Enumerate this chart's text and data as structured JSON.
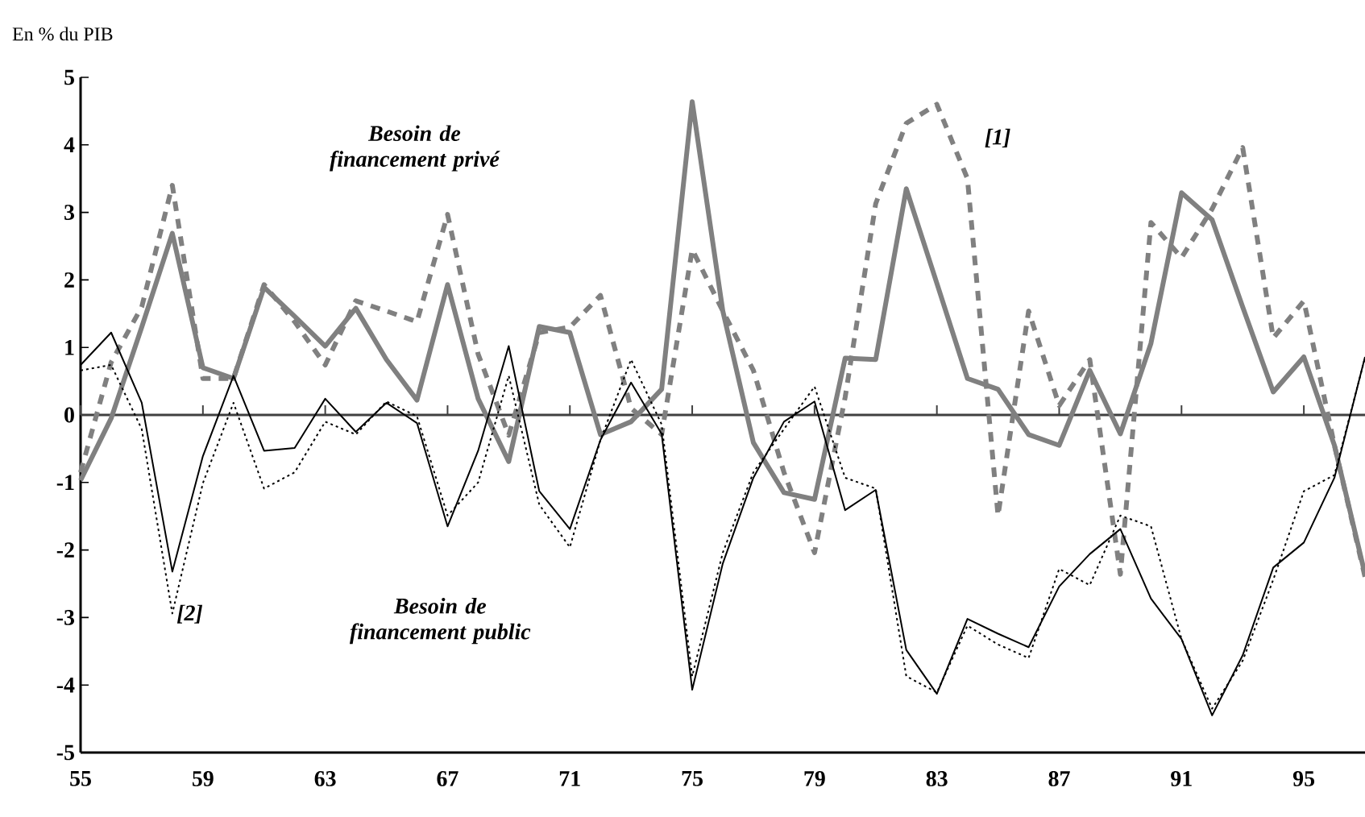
{
  "chart_data": {
    "type": "line",
    "ylabel": "En % du PIB",
    "x": [
      55,
      56,
      57,
      58,
      59,
      60,
      61,
      62,
      63,
      64,
      65,
      66,
      67,
      68,
      69,
      70,
      71,
      72,
      73,
      74,
      75,
      76,
      77,
      78,
      79,
      80,
      81,
      82,
      83,
      84,
      85,
      86,
      87,
      88,
      89,
      90,
      91,
      92,
      93,
      94,
      95,
      96,
      97
    ],
    "xlim": [
      55,
      97
    ],
    "xticks": [
      55,
      59,
      63,
      67,
      71,
      75,
      79,
      83,
      87,
      91,
      95
    ],
    "ylim": [
      -5,
      5
    ],
    "yticks": [
      -5,
      -4,
      -3,
      -2,
      -1,
      0,
      1,
      2,
      3,
      4,
      5
    ],
    "grid": false,
    "marker": "none",
    "series": [
      {
        "color": "#808080",
        "line_style": "solid",
        "values": [
          -0.97,
          -0.05,
          1.3,
          2.69,
          0.7,
          0.54,
          1.89,
          1.46,
          1.02,
          1.58,
          0.82,
          0.22,
          1.93,
          0.24,
          -0.69,
          1.31,
          1.22,
          -0.29,
          -0.1,
          0.38,
          4.64,
          1.54,
          -0.41,
          -1.15,
          -1.25,
          0.84,
          0.82,
          3.35,
          1.95,
          0.54,
          0.38,
          -0.29,
          -0.45,
          0.66,
          -0.28,
          1.06,
          3.29,
          2.89,
          1.6,
          0.34,
          0.86,
          -0.45,
          -2.36
        ]
      },
      {
        "color": "#808080",
        "line_style": "dashed",
        "values": [
          -0.85,
          0.78,
          1.6,
          3.4,
          0.54,
          0.54,
          1.93,
          1.38,
          0.74,
          1.69,
          1.54,
          1.38,
          2.97,
          0.9,
          -0.3,
          1.22,
          1.3,
          1.77,
          0.1,
          -0.29,
          2.45,
          1.54,
          0.66,
          -0.85,
          -2.04,
          0.26,
          3.13,
          4.32,
          4.6,
          3.5,
          -1.49,
          1.54,
          0.14,
          0.82,
          -2.36,
          2.85,
          2.33,
          3.05,
          3.96,
          1.14,
          1.69,
          -0.45,
          -2.4
        ]
      },
      {
        "color": "#000000",
        "line_style": "solid",
        "values": [
          0.74,
          1.22,
          0.18,
          -2.32,
          -0.61,
          0.58,
          -0.53,
          -0.49,
          0.24,
          -0.25,
          0.18,
          -0.12,
          -1.65,
          -0.53,
          1.02,
          -1.13,
          -1.69,
          -0.37,
          0.48,
          -0.28,
          -4.07,
          -2.2,
          -0.93,
          -0.1,
          0.2,
          -1.41,
          -1.11,
          -3.48,
          -4.13,
          -3.02,
          -3.24,
          -3.44,
          -2.54,
          -2.06,
          -1.69,
          -2.72,
          -3.32,
          -4.45,
          -3.56,
          -2.26,
          -1.89,
          -0.93,
          0.86
        ]
      },
      {
        "color": "#000000",
        "line_style": "dotted",
        "values": [
          0.66,
          0.74,
          -0.21,
          -2.94,
          -1.01,
          0.18,
          -1.09,
          -0.85,
          -0.1,
          -0.29,
          0.2,
          -0.02,
          -1.49,
          -1.0,
          0.58,
          -1.33,
          -1.96,
          -0.37,
          0.82,
          -0.14,
          -3.87,
          -2.04,
          -0.85,
          -0.21,
          0.42,
          -0.93,
          -1.09,
          -3.87,
          -4.11,
          -3.12,
          -3.4,
          -3.6,
          -2.28,
          -2.52,
          -1.49,
          -1.65,
          -3.32,
          -4.35,
          -3.64,
          -2.44,
          -1.13,
          -0.89,
          0.85
        ]
      }
    ],
    "ref_lines": [
      {
        "axis": "y",
        "value": 0,
        "color": "#404040"
      }
    ],
    "annotations": [
      "Besoin de financement privé",
      "Besoin de financement public",
      "[1]",
      "[2]"
    ]
  }
}
